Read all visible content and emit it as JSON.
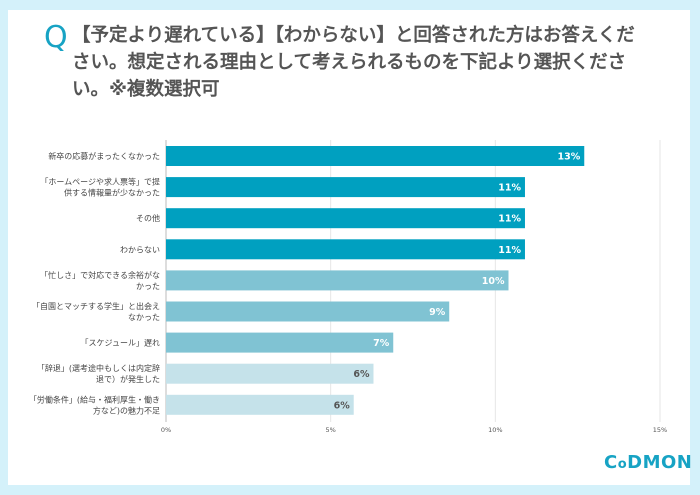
{
  "question": {
    "mark": "Q",
    "text": "【予定より遅れている】【わからない】と回答された方はお答えください。想定される理由として考えられるものを下記より選択ください。※複数選択可"
  },
  "logo": "CODMON",
  "colors": {
    "dark": "#00a0c0",
    "medium": "#80c3d3",
    "light": "#c5e2ea",
    "frame": "#d4f1fa"
  },
  "chart_data": {
    "type": "bar",
    "orientation": "horizontal",
    "categories": [
      "新卒の応募がまったくなかった",
      "「ホームページや求人票等」で提供する情報量が少なかった",
      "その他",
      "わからない",
      "「忙しさ」で対応できる余裕がなかった",
      "「自園とマッチする学生」と出会えなかった",
      "「スケジュール」遅れ",
      "「辞退」(選考途中もしくは内定辞退で）が発生した",
      "「労働条件」(給与・福利厚生・働き方など)の魅力不足"
    ],
    "category_lines": [
      [
        "新卒の応募がまったくなかった"
      ],
      [
        "「ホームページや求人票等」で提",
        "供する情報量が少なかった"
      ],
      [
        "その他"
      ],
      [
        "わからない"
      ],
      [
        "「忙しさ」で対応できる余裕がな",
        "かった"
      ],
      [
        "「自園とマッチする学生」と出会え",
        "なかった"
      ],
      [
        "「スケジュール」遅れ"
      ],
      [
        "「辞退」(選考途中もしくは内定辞",
        "退で）が発生した"
      ],
      [
        "「労働条件」(給与・福利厚生・働き",
        "方など)の魅力不足"
      ]
    ],
    "values": [
      12.7,
      10.9,
      10.9,
      10.9,
      10.4,
      8.6,
      6.9,
      6.3,
      5.7
    ],
    "data_labels": [
      "13%",
      "11%",
      "11%",
      "11%",
      "10%",
      "9%",
      "7%",
      "6%",
      "6%"
    ],
    "bar_colors": [
      "#00a0c0",
      "#00a0c0",
      "#00a0c0",
      "#00a0c0",
      "#80c3d3",
      "#80c3d3",
      "#80c3d3",
      "#c5e2ea",
      "#c5e2ea"
    ],
    "xlim": [
      0,
      15
    ],
    "xticks": [
      0,
      5,
      10,
      15
    ],
    "xtick_labels": [
      "0%",
      "5%",
      "10%",
      "15%"
    ],
    "grid": true
  }
}
